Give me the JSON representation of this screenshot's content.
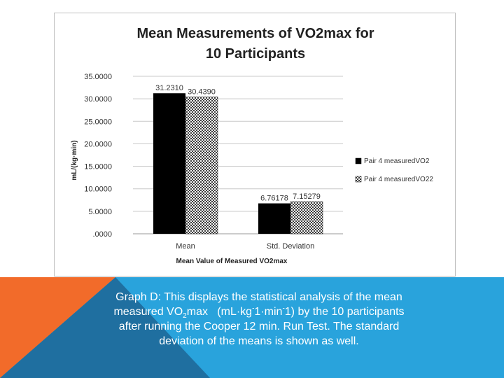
{
  "chart_data": {
    "type": "bar",
    "title": "Mean Measurements of VO2max for 10 Participants",
    "xlabel": "Mean Value of Measured VO2max",
    "ylabel": "mL/(kg·min)",
    "ylim": [
      0,
      35
    ],
    "yticks": [
      "35.0000",
      "30.0000",
      "25.0000",
      "20.0000",
      "15.0000",
      "10.0000",
      "5.0000",
      ".0000"
    ],
    "categories": [
      "Mean",
      "Std. Deviation"
    ],
    "series": [
      {
        "name": "Pair 4 measuredVO2",
        "values": [
          31.231,
          6.76178
        ],
        "labels": [
          "31.2310",
          "6.76178"
        ]
      },
      {
        "name": "Pair 4 measuredVO22",
        "values": [
          30.439,
          7.15279
        ],
        "labels": [
          "30.4390",
          "7.15279"
        ]
      }
    ],
    "grid": true,
    "legend": "right"
  },
  "caption": {
    "line1": "Graph D: This displays the statistical analysis of the mean",
    "line2_a": "measured VO",
    "line2_sub": "2",
    "line2_b": "max   (mL·kg",
    "line2_sup1": "-",
    "line2_c": "1·min",
    "line2_sup2": "-",
    "line2_d": "1) by the 10 participants",
    "line3": "after running the Cooper 12 min. Run Test. The standard",
    "line4": "deviation of the means is shown as well."
  },
  "colors": {
    "band_blue": "#29a3dc",
    "band_orange": "#f26b2a",
    "band_darkblue": "#1f6fa0"
  }
}
